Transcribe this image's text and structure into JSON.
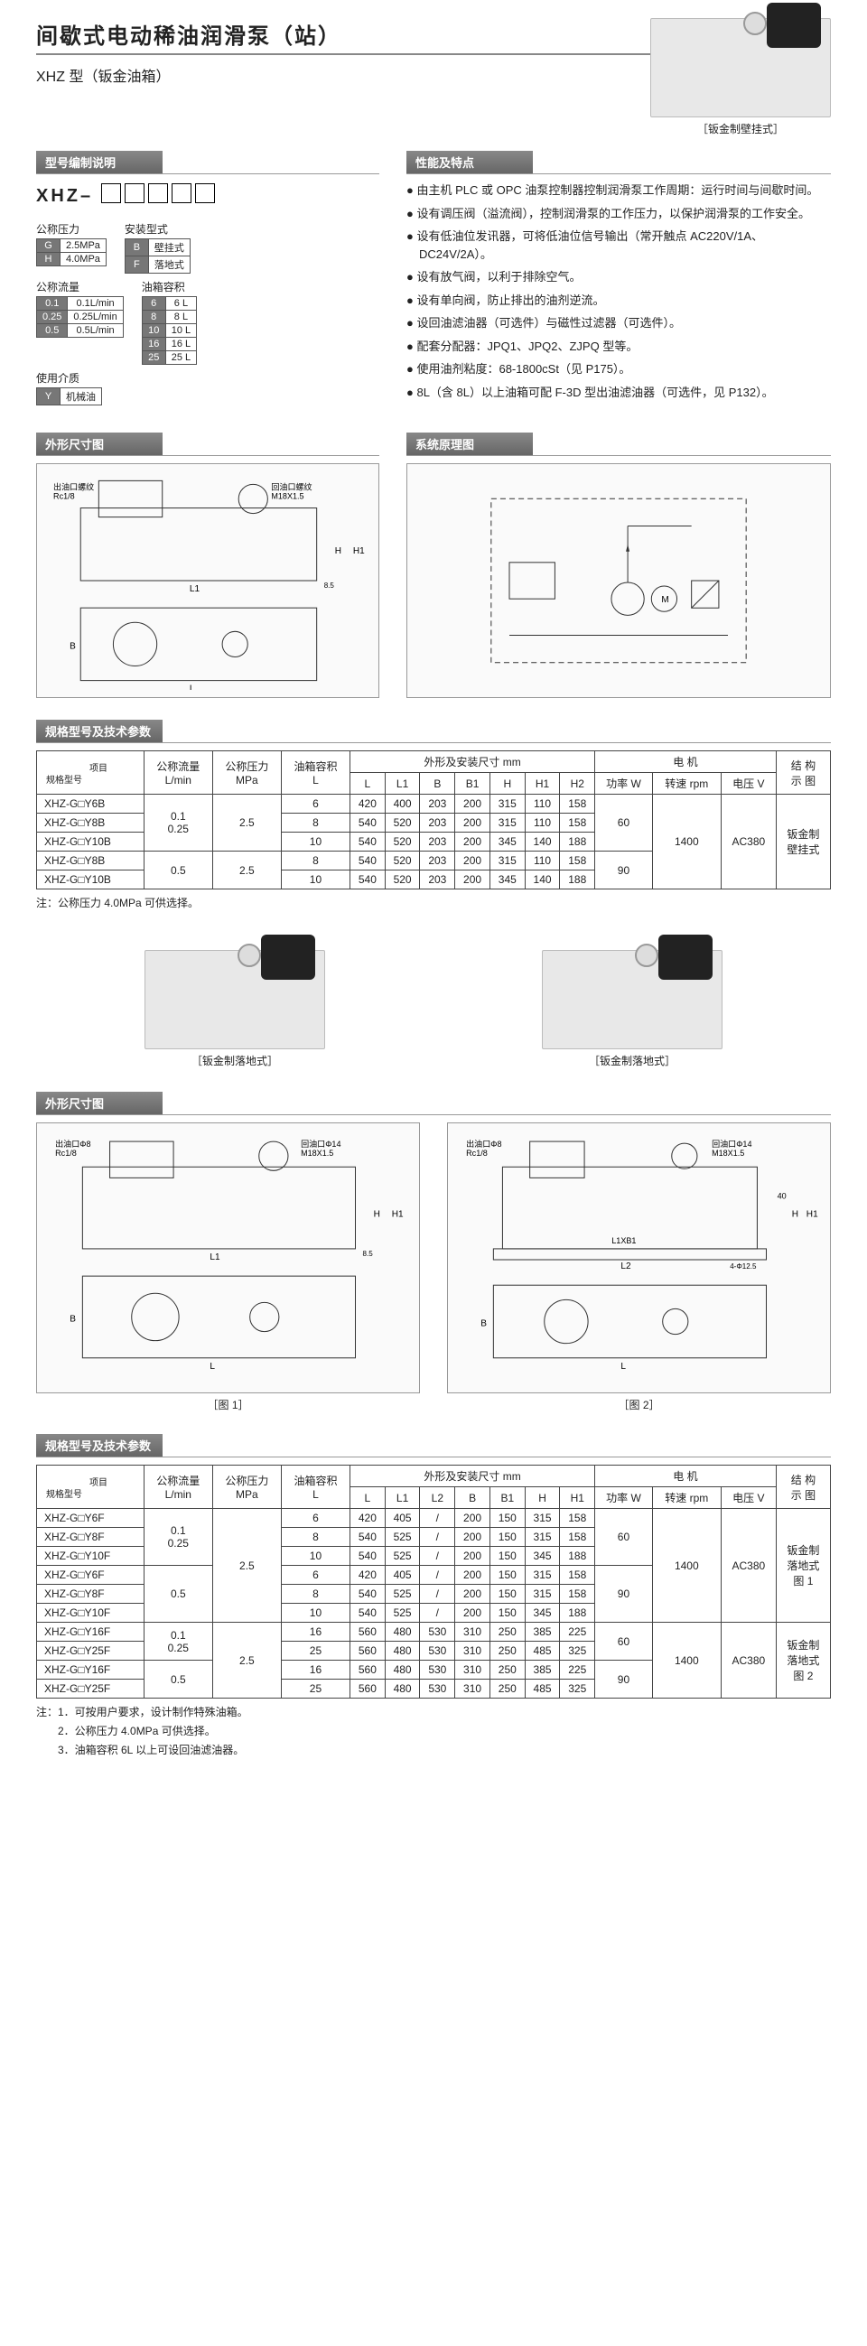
{
  "title": "间歇式电动稀油润滑泵（站）",
  "subtitle": "XHZ 型（钣金油箱）",
  "photo1_caption": "［钣金制壁挂式］",
  "encoding": {
    "header": "型号编制说明",
    "prefix": "XHZ–",
    "fields": {
      "pressure_name": "公称压力",
      "pressure_rows": [
        [
          "G",
          "2.5MPa"
        ],
        [
          "H",
          "4.0MPa"
        ]
      ],
      "mount_name": "安装型式",
      "mount_rows": [
        [
          "B",
          "壁挂式"
        ],
        [
          "F",
          "落地式"
        ]
      ],
      "flow_name": "公称流量",
      "flow_rows": [
        [
          "0.1",
          "0.1L/min"
        ],
        [
          "0.25",
          "0.25L/min"
        ],
        [
          "0.5",
          "0.5L/min"
        ]
      ],
      "tank_name": "油箱容积",
      "tank_rows": [
        [
          "6",
          "6 L"
        ],
        [
          "8",
          "8 L"
        ],
        [
          "10",
          "10 L"
        ],
        [
          "16",
          "16 L"
        ],
        [
          "25",
          "25 L"
        ]
      ],
      "media_name": "使用介质",
      "media_rows": [
        [
          "Y",
          "机械油"
        ]
      ]
    }
  },
  "features": {
    "header": "性能及特点",
    "items": [
      "由主机 PLC 或 OPC 油泵控制器控制润滑泵工作周期：运行时间与间歇时间。",
      "设有调压阀（溢流阀），控制润滑泵的工作压力，以保护润滑泵的工作安全。",
      "设有低油位发讯器，可将低油位信号输出（常开触点 AC220V/1A、DC24V/2A）。",
      "设有放气阀，以利于排除空气。",
      "设有单向阀，防止排出的油剂逆流。",
      "设回油滤油器（可选件）与磁性过滤器（可选件）。",
      "配套分配器：JPQ1、JPQ2、ZJPQ 型等。",
      "使用油剂粘度：68-1800cSt（见 P175）。",
      "8L（含 8L）以上油箱可配 F-3D 型出油滤油器（可选件，见 P132）。"
    ]
  },
  "dim_header": "外形尺寸图",
  "sys_header": "系统原理图",
  "dim_labels": {
    "out": "出油口螺纹",
    "out_v": "Rc1/8",
    "ret": "回油口螺纹",
    "ret_v1": "M18X1.5",
    "ret_v2": "回油口Φ14",
    "ret_v3": "出油口Φ8"
  },
  "spec_header": "规格型号及技术参数",
  "spec1": {
    "corner_top": "项目",
    "corner_bot": "规格型号",
    "cols": [
      "公称流量\nL/min",
      "公称压力\nMPa",
      "油箱容积\nL",
      "外形及安装尺寸 mm",
      "电 机",
      "结 构\n示 图"
    ],
    "dim_cols": [
      "L",
      "L1",
      "B",
      "B1",
      "H",
      "H1",
      "H2"
    ],
    "motor_cols": [
      "功率 W",
      "转速 rpm",
      "电压 V"
    ],
    "rows": [
      {
        "m": "XHZ-G□Y6B",
        "flow": "0.1\n0.25",
        "p": "2.5",
        "v": "6",
        "d": [
          "420",
          "400",
          "203",
          "200",
          "315",
          "110",
          "158"
        ],
        "pw": "60",
        "rpm": "1400",
        "volt": "AC380",
        "st": "钣金制\n壁挂式"
      },
      {
        "m": "XHZ-G□Y8B",
        "v": "8",
        "d": [
          "540",
          "520",
          "203",
          "200",
          "315",
          "110",
          "158"
        ]
      },
      {
        "m": "XHZ-G□Y10B",
        "v": "10",
        "d": [
          "540",
          "520",
          "203",
          "200",
          "345",
          "140",
          "188"
        ]
      },
      {
        "m": "XHZ-G□Y8B",
        "flow": "0.5",
        "p": "2.5",
        "v": "8",
        "d": [
          "540",
          "520",
          "203",
          "200",
          "315",
          "110",
          "158"
        ],
        "pw": "90"
      },
      {
        "m": "XHZ-G□Y10B",
        "v": "10",
        "d": [
          "540",
          "520",
          "203",
          "200",
          "345",
          "140",
          "188"
        ]
      }
    ],
    "note": "注：公称压力 4.0MPa 可供选择。"
  },
  "photo_cap_l": "［钣金制落地式］",
  "photo_cap_r": "［钣金制落地式］",
  "fig1": "［图 1］",
  "fig2": "［图 2］",
  "spec2": {
    "dim_cols": [
      "L",
      "L1",
      "L2",
      "B",
      "B1",
      "H",
      "H1"
    ],
    "rows": [
      {
        "m": "XHZ-G□Y6F",
        "flow": "0.1\n0.25",
        "p": "2.5",
        "v": "6",
        "d": [
          "420",
          "405",
          "/",
          "200",
          "150",
          "315",
          "158"
        ],
        "pw": "60",
        "rpm": "1400",
        "volt": "AC380",
        "st": "钣金制\n落地式\n图 1"
      },
      {
        "m": "XHZ-G□Y8F",
        "v": "8",
        "d": [
          "540",
          "525",
          "/",
          "200",
          "150",
          "315",
          "158"
        ]
      },
      {
        "m": "XHZ-G□Y10F",
        "v": "10",
        "d": [
          "540",
          "525",
          "/",
          "200",
          "150",
          "345",
          "188"
        ]
      },
      {
        "m": "XHZ-G□Y6F",
        "flow": "0.5",
        "v": "6",
        "d": [
          "420",
          "405",
          "/",
          "200",
          "150",
          "315",
          "158"
        ],
        "pw": "90"
      },
      {
        "m": "XHZ-G□Y8F",
        "v": "8",
        "d": [
          "540",
          "525",
          "/",
          "200",
          "150",
          "315",
          "158"
        ]
      },
      {
        "m": "XHZ-G□Y10F",
        "v": "10",
        "d": [
          "540",
          "525",
          "/",
          "200",
          "150",
          "345",
          "188"
        ]
      },
      {
        "m": "XHZ-G□Y16F",
        "flow": "0.1\n0.25",
        "p": "2.5",
        "v": "16",
        "d": [
          "560",
          "480",
          "530",
          "310",
          "250",
          "385",
          "225"
        ],
        "pw": "60",
        "rpm": "1400",
        "volt": "AC380",
        "st": "钣金制\n落地式\n图 2"
      },
      {
        "m": "XHZ-G□Y25F",
        "v": "25",
        "d": [
          "560",
          "480",
          "530",
          "310",
          "250",
          "485",
          "325"
        ]
      },
      {
        "m": "XHZ-G□Y16F",
        "flow": "0.5",
        "v": "16",
        "d": [
          "560",
          "480",
          "530",
          "310",
          "250",
          "385",
          "225"
        ],
        "pw": "90"
      },
      {
        "m": "XHZ-G□Y25F",
        "v": "25",
        "d": [
          "560",
          "480",
          "530",
          "310",
          "250",
          "485",
          "325"
        ]
      }
    ],
    "notes": [
      "注：1．可按用户要求，设计制作特殊油箱。",
      "　　2．公称压力 4.0MPa 可供选择。",
      "　　3．油箱容积 6L 以上可设回油滤油器。"
    ]
  }
}
